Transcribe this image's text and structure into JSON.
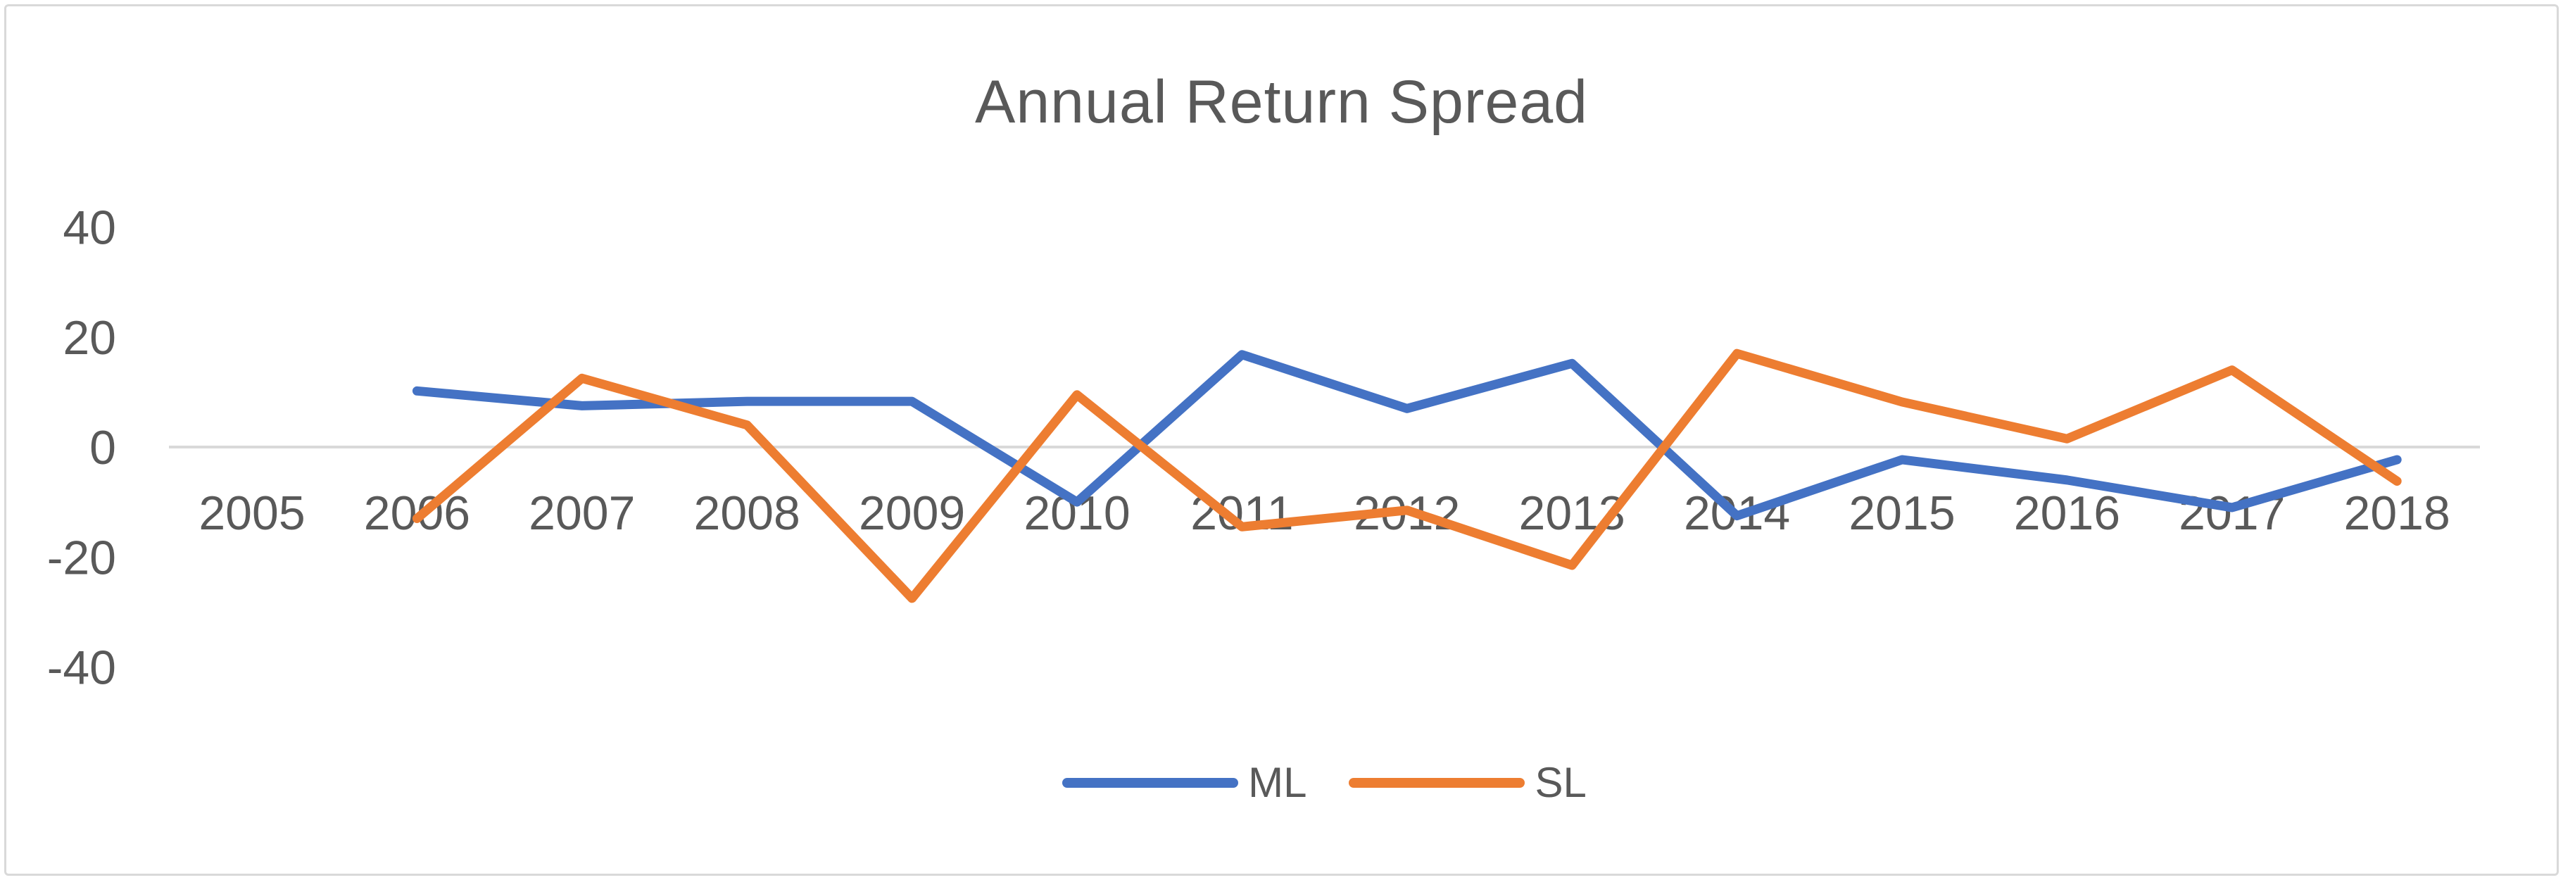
{
  "window": {
    "background": "#ffffff",
    "frame_border_color": "#d9d9d9"
  },
  "chart": {
    "title": "Annual Return Spread",
    "text_color": "#595959",
    "gridline_color": "#d9d9d9",
    "legend": [
      {
        "id": "ml",
        "label": "ML",
        "color": "#4472C4"
      },
      {
        "id": "sl",
        "label": "SL",
        "color": "#ED7D31"
      }
    ]
  },
  "chart_data": {
    "type": "line",
    "title": "Annual Return Spread",
    "categories": [
      "2005",
      "2006",
      "2007",
      "2008",
      "2009",
      "2010",
      "2011",
      "2012",
      "2013",
      "2014",
      "2015",
      "2016",
      "2017",
      "2018"
    ],
    "series": [
      {
        "name": "ML",
        "color": "#4472C4",
        "values": [
          null,
          10.2,
          7.5,
          8.3,
          8.3,
          -10,
          16.8,
          7,
          15.2,
          -12.5,
          -2.3,
          -6,
          -11,
          -2.3
        ]
      },
      {
        "name": "SL",
        "color": "#ED7D31",
        "values": [
          null,
          -13,
          12.5,
          4,
          -27.5,
          9.5,
          -14.5,
          -11.5,
          -21.5,
          17,
          8.2,
          1.5,
          14,
          -6.2
        ]
      }
    ],
    "xlabel": "",
    "ylabel": "",
    "y_ticks": [
      40,
      20,
      0,
      -20,
      -40
    ],
    "ylim": [
      -50,
      45
    ],
    "grid": "zero-line-only",
    "legend_position": "bottom",
    "legend_entries": [
      "ML",
      "SL"
    ]
  }
}
